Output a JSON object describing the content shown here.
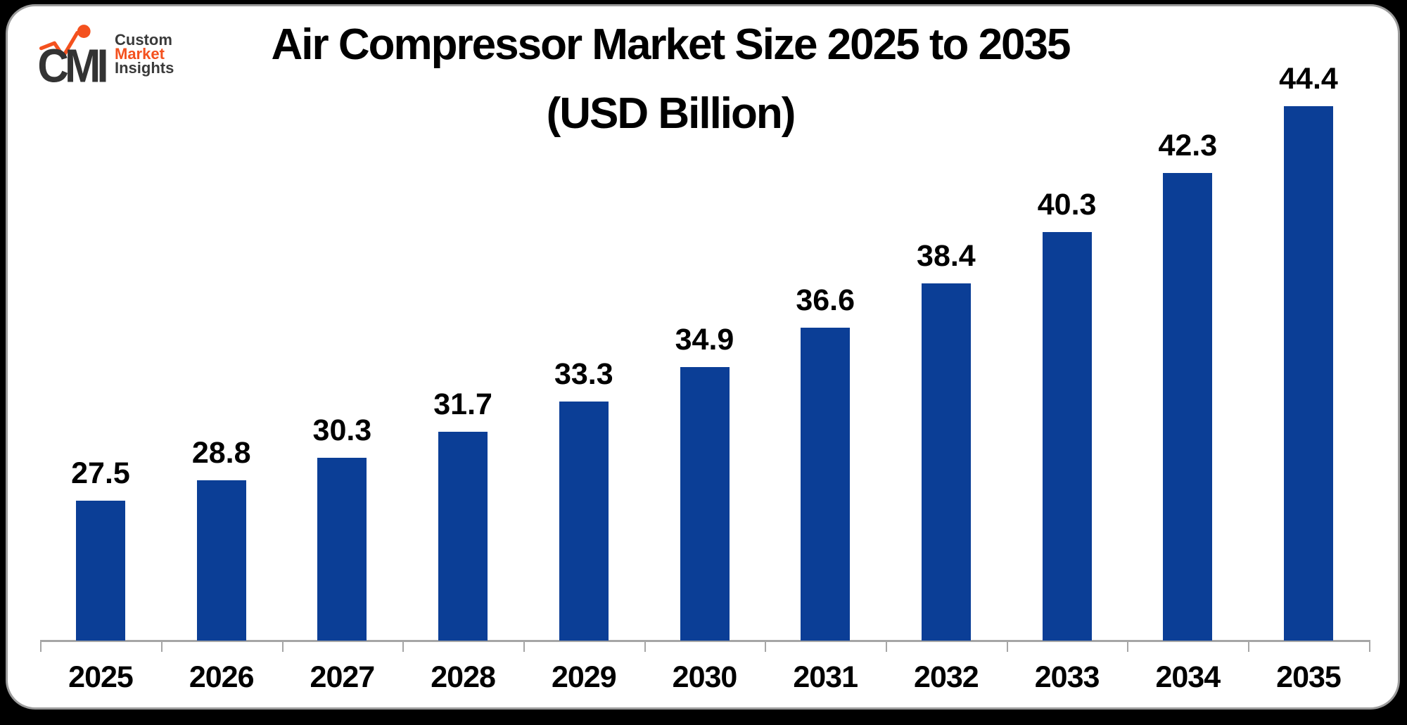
{
  "page": {
    "outer_background": "#000000",
    "card_background": "#ffffff",
    "card_border_color": "#9c9c9c"
  },
  "logo": {
    "monogram": "CMI",
    "monogram_color": "#333333",
    "accent_color": "#F4511E",
    "name_lines": [
      {
        "text": "Custom",
        "color": "#3a3a3a"
      },
      {
        "text": "Market",
        "color": "#F4511E"
      },
      {
        "text": "Insights",
        "color": "#3a3a3a"
      }
    ]
  },
  "chart_data": {
    "type": "bar",
    "title": "Air Compressor Market Size 2025 to 2035 (USD Billion)",
    "title_line1": "Air Compressor Market Size 2025 to 2035",
    "title_line2": "(USD Billion)",
    "unit": "USD Billion",
    "categories": [
      "2025",
      "2026",
      "2027",
      "2028",
      "2029",
      "2030",
      "2031",
      "2032",
      "2033",
      "2034",
      "2035"
    ],
    "values": [
      27.5,
      28.8,
      30.3,
      31.7,
      33.3,
      34.9,
      36.6,
      38.4,
      40.3,
      42.3,
      44.4
    ],
    "bar_color": "#0B3E96",
    "axis_color": "#A6A6A6",
    "value_label_color": "#000000",
    "tick_label_color": "#000000",
    "title_color": "#000000",
    "gridlines": false,
    "legend": "none",
    "y_axis_visible": false,
    "data_labels_position": "above-bars"
  }
}
